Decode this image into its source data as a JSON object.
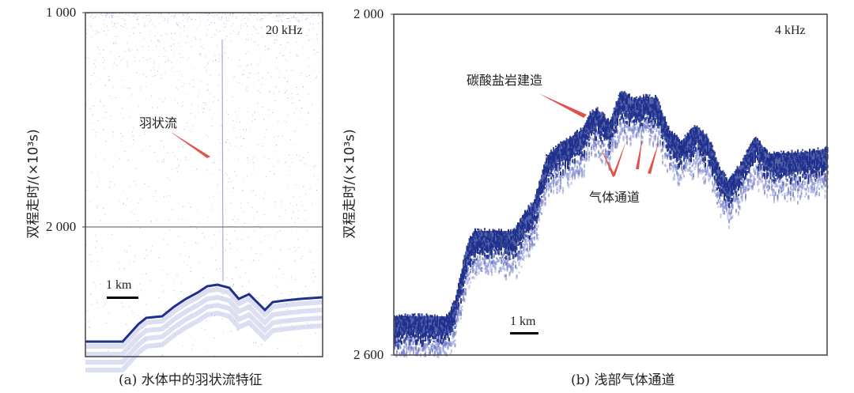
{
  "panel_a": {
    "caption": "(a) 水体中的羽状流特征",
    "y_label": "双程走时/(×10³s)",
    "y_ticks": [
      "1 000",
      "2 000"
    ],
    "frequency": "20 kHz",
    "annotation": "羽状流",
    "scale_bar": "1 km"
  },
  "panel_b": {
    "caption": "(b) 浅部气体通道",
    "y_label": "双程走时/(×10³s)",
    "y_ticks": [
      "2 000",
      "2 600"
    ],
    "frequency": "4 kHz",
    "annotations": [
      "碳酸盐岩建造",
      "气体通道"
    ],
    "scale_bar": "1 km"
  },
  "colors": {
    "echo": "#1e2f8c",
    "arrow": "#e0524a",
    "frame": "#444444"
  }
}
